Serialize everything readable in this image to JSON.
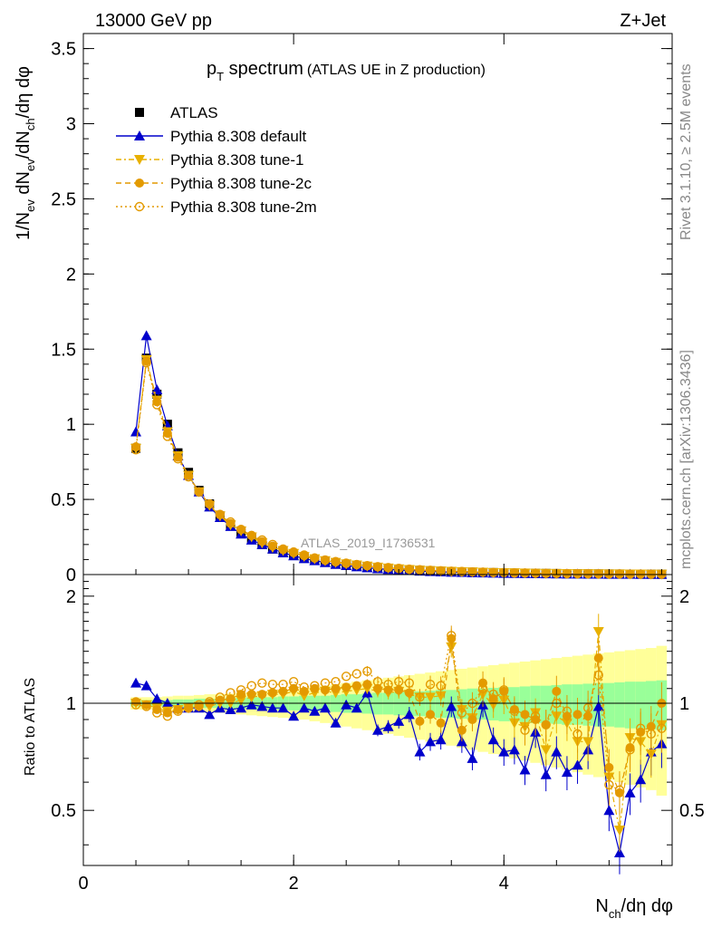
{
  "header": {
    "energy": "13000 GeV pp",
    "process": "Z+Jet"
  },
  "plot_title": {
    "main": "p",
    "sub": "T",
    "rest": " spectrum",
    "paren": "(ATLAS UE in Z production)"
  },
  "side_labels": {
    "rivet": "Rivet 3.1.10, ≥ 2.5M events",
    "mcplots": "mcplots.cern.ch [arXiv:1306.3436]"
  },
  "reference": "ATLAS_2019_I1736531",
  "ylabel_main": {
    "p1": "1/N",
    "s1": "ev",
    "p2": " dN",
    "s2": "ev",
    "p3": "/dN",
    "s3": "ch",
    "p4": "/dη dφ"
  },
  "ylabel_ratio": "Ratio to ATLAS",
  "xlabel": {
    "p1": "N",
    "s1": "ch",
    "p2": "/dη dφ"
  },
  "legend": [
    {
      "name": "ATLAS",
      "color": "#000000",
      "marker": "square",
      "line": "none"
    },
    {
      "name": "Pythia 8.308 default",
      "color": "#0000cc",
      "marker": "triangle-up",
      "line": "solid"
    },
    {
      "name": "Pythia 8.308 tune-1",
      "color": "#e8b000",
      "marker": "triangle-down",
      "line": "dashdot"
    },
    {
      "name": "Pythia 8.308 tune-2c",
      "color": "#e39a00",
      "marker": "circle",
      "line": "dashed"
    },
    {
      "name": "Pythia 8.308 tune-2m",
      "color": "#e39a00",
      "marker": "open-circle",
      "line": "dotted"
    }
  ],
  "chart_data": [
    {
      "type": "scatter",
      "panel": "main",
      "xlim": [
        0,
        5.6
      ],
      "ylim": [
        0,
        3.6
      ],
      "xticks": [
        0,
        2,
        4
      ],
      "yticks": [
        0,
        0.5,
        1,
        1.5,
        2,
        2.5,
        3,
        3.5
      ],
      "ytick_labels": [
        "0",
        "0.5",
        "1",
        "1.5",
        "2",
        "2.5",
        "3",
        "3.5"
      ],
      "x": [
        0.5,
        0.6,
        0.7,
        0.8,
        0.9,
        1.0,
        1.1,
        1.2,
        1.3,
        1.4,
        1.5,
        1.6,
        1.7,
        1.8,
        1.9,
        2.0,
        2.1,
        2.2,
        2.3,
        2.4,
        2.5,
        2.6,
        2.7,
        2.8,
        2.9,
        3.0,
        3.1,
        3.2,
        3.3,
        3.4,
        3.5,
        3.6,
        3.7,
        3.8,
        3.9,
        4.0,
        4.1,
        4.2,
        4.3,
        4.4,
        4.5,
        4.6,
        4.7,
        4.8,
        4.9,
        5.0,
        5.1,
        5.2,
        5.3,
        5.4,
        5.5
      ],
      "series": [
        {
          "name": "ATLAS",
          "values": [
            0.84,
            1.44,
            1.2,
            1.0,
            0.81,
            0.68,
            0.56,
            0.47,
            0.39,
            0.33,
            0.28,
            0.24,
            0.2,
            0.17,
            0.15,
            0.13,
            0.11,
            0.098,
            0.085,
            0.075,
            0.066,
            0.058,
            0.051,
            0.045,
            0.04,
            0.035,
            0.031,
            0.028,
            0.025,
            0.022,
            0.02,
            0.018,
            0.016,
            0.014,
            0.013,
            0.011,
            0.01,
            0.009,
            0.0082,
            0.0074,
            0.0066,
            0.0059,
            0.0053,
            0.0048,
            0.0043,
            0.0038,
            0.0034,
            0.0031,
            0.0028,
            0.0025,
            0.0022
          ]
        },
        {
          "name": "Pythia 8.308 default",
          "values": [
            0.95,
            1.59,
            1.23,
            0.99,
            0.79,
            0.66,
            0.55,
            0.45,
            0.38,
            0.32,
            0.27,
            0.23,
            0.2,
            0.17,
            0.145,
            0.125,
            0.106,
            0.093,
            0.08,
            0.068,
            0.06,
            0.052,
            0.045,
            0.039,
            0.034,
            0.03,
            0.027,
            0.023,
            0.02,
            0.018,
            0.016,
            0.014,
            0.012,
            0.011,
            0.01,
            0.0085,
            0.0075,
            0.0066,
            0.0058,
            0.0051,
            0.0045,
            0.004,
            0.0036,
            0.0032,
            0.0028,
            0.0024,
            0.0021,
            0.0019,
            0.0017,
            0.0015,
            0.0013
          ]
        },
        {
          "name": "Pythia 8.308 tune-1",
          "values": [
            0.84,
            1.43,
            1.16,
            0.95,
            0.79,
            0.66,
            0.55,
            0.46,
            0.39,
            0.33,
            0.29,
            0.25,
            0.21,
            0.18,
            0.16,
            0.14,
            0.12,
            0.105,
            0.092,
            0.081,
            0.071,
            0.063,
            0.056,
            0.049,
            0.043,
            0.038,
            0.033,
            0.029,
            0.026,
            0.023,
            0.021,
            0.019,
            0.017,
            0.015,
            0.013,
            0.012,
            0.011,
            0.0095,
            0.0085,
            0.0076,
            0.0068,
            0.0061,
            0.0055,
            0.0049,
            0.0044,
            0.0039,
            0.0035,
            0.0031,
            0.0028,
            0.0025,
            0.0022
          ]
        },
        {
          "name": "Pythia 8.308 tune-2c",
          "values": [
            0.85,
            1.42,
            1.15,
            0.94,
            0.78,
            0.66,
            0.55,
            0.47,
            0.4,
            0.34,
            0.3,
            0.26,
            0.22,
            0.19,
            0.165,
            0.145,
            0.125,
            0.11,
            0.095,
            0.084,
            0.074,
            0.066,
            0.058,
            0.051,
            0.045,
            0.04,
            0.035,
            0.031,
            0.027,
            0.024,
            0.022,
            0.02,
            0.018,
            0.016,
            0.014,
            0.012,
            0.011,
            0.01,
            0.009,
            0.008,
            0.0071,
            0.0064,
            0.0057,
            0.0051,
            0.0046,
            0.0041,
            0.0037,
            0.0033,
            0.0029,
            0.0026,
            0.0023
          ]
        },
        {
          "name": "Pythia 8.308 tune-2m",
          "values": [
            0.83,
            1.41,
            1.13,
            0.92,
            0.77,
            0.65,
            0.55,
            0.47,
            0.4,
            0.35,
            0.3,
            0.26,
            0.23,
            0.2,
            0.17,
            0.15,
            0.13,
            0.11,
            0.097,
            0.086,
            0.076,
            0.067,
            0.059,
            0.052,
            0.046,
            0.041,
            0.036,
            0.032,
            0.028,
            0.025,
            0.022,
            0.02,
            0.018,
            0.016,
            0.014,
            0.013,
            0.011,
            0.01,
            0.009,
            0.008,
            0.0072,
            0.0065,
            0.0058,
            0.0052,
            0.0047,
            0.0042,
            0.0038,
            0.0034,
            0.003,
            0.0027,
            0.0024
          ]
        }
      ]
    },
    {
      "type": "scatter",
      "panel": "ratio",
      "xlabel": "N_ch/dη dφ",
      "ylabel": "Ratio to ATLAS",
      "xlim": [
        0,
        5.6
      ],
      "ylim": [
        0.35,
        2.3
      ],
      "xticks": [
        0,
        2,
        4
      ],
      "xtick_labels": [
        "0",
        "2",
        "4"
      ],
      "yticks": [
        0.5,
        1,
        2
      ],
      "ytick_labels": [
        "0.5",
        "1",
        "2"
      ],
      "x": [
        0.5,
        0.6,
        0.7,
        0.8,
        0.9,
        1.0,
        1.1,
        1.2,
        1.3,
        1.4,
        1.5,
        1.6,
        1.7,
        1.8,
        1.9,
        2.0,
        2.1,
        2.2,
        2.3,
        2.4,
        2.5,
        2.6,
        2.7,
        2.8,
        2.9,
        3.0,
        3.1,
        3.2,
        3.3,
        3.4,
        3.5,
        3.6,
        3.7,
        3.8,
        3.9,
        4.0,
        4.1,
        4.2,
        4.3,
        4.4,
        4.5,
        4.6,
        4.7,
        4.8,
        4.9,
        5.0,
        5.1,
        5.2,
        5.3,
        5.4,
        5.5
      ],
      "band_inner": [
        0.02,
        0.02,
        0.02,
        0.02,
        0.025,
        0.025,
        0.03,
        0.03,
        0.03,
        0.035,
        0.035,
        0.04,
        0.04,
        0.04,
        0.045,
        0.045,
        0.05,
        0.05,
        0.05,
        0.055,
        0.06,
        0.06,
        0.065,
        0.07,
        0.07,
        0.075,
        0.08,
        0.08,
        0.085,
        0.09,
        0.09,
        0.095,
        0.1,
        0.1,
        0.105,
        0.11,
        0.11,
        0.115,
        0.12,
        0.12,
        0.125,
        0.13,
        0.13,
        0.135,
        0.14,
        0.14,
        0.145,
        0.15,
        0.15,
        0.155,
        0.16
      ],
      "band_outer": [
        0.04,
        0.04,
        0.04,
        0.045,
        0.05,
        0.05,
        0.055,
        0.06,
        0.06,
        0.065,
        0.07,
        0.075,
        0.08,
        0.085,
        0.09,
        0.095,
        0.1,
        0.11,
        0.12,
        0.13,
        0.14,
        0.15,
        0.16,
        0.17,
        0.18,
        0.19,
        0.2,
        0.21,
        0.22,
        0.23,
        0.24,
        0.25,
        0.26,
        0.27,
        0.28,
        0.29,
        0.3,
        0.31,
        0.32,
        0.33,
        0.34,
        0.35,
        0.36,
        0.37,
        0.38,
        0.39,
        0.4,
        0.41,
        0.42,
        0.43,
        0.45
      ],
      "series": [
        {
          "name": "Pythia 8.308 default",
          "values": [
            1.14,
            1.12,
            1.03,
            1.0,
            0.97,
            0.97,
            0.97,
            0.93,
            0.97,
            0.96,
            0.97,
            0.99,
            0.98,
            0.97,
            0.97,
            0.92,
            0.97,
            0.95,
            0.97,
            0.88,
            0.99,
            0.97,
            1.07,
            0.84,
            0.86,
            0.89,
            0.93,
            0.73,
            0.78,
            0.79,
            0.98,
            0.78,
            0.7,
            0.99,
            0.79,
            0.73,
            0.74,
            0.65,
            0.83,
            0.63,
            0.73,
            0.64,
            0.67,
            0.74,
            0.98,
            0.5,
            0.38,
            0.56,
            0.61,
            0.73,
            0.77
          ]
        },
        {
          "name": "Pythia 8.308 tune-1",
          "values": [
            1.0,
            0.99,
            0.97,
            0.95,
            0.96,
            0.97,
            0.98,
            0.98,
            1.0,
            1.0,
            1.02,
            1.04,
            1.05,
            1.06,
            1.06,
            1.08,
            1.05,
            1.07,
            1.08,
            1.07,
            1.08,
            1.09,
            1.1,
            1.08,
            1.07,
            1.08,
            1.06,
            1.04,
            1.04,
            1.05,
            1.44,
            0.96,
            0.91,
            1.06,
            0.99,
            1.02,
            0.88,
            0.86,
            0.94,
            0.74,
            0.92,
            0.88,
            0.78,
            0.78,
            1.59,
            0.62,
            0.44,
            0.8,
            0.78,
            0.72,
            0.87
          ]
        },
        {
          "name": "Pythia 8.308 tune-2c",
          "values": [
            1.01,
            0.99,
            0.96,
            0.94,
            0.96,
            0.97,
            0.98,
            1.0,
            1.02,
            1.03,
            1.06,
            1.06,
            1.06,
            1.07,
            1.08,
            1.1,
            1.08,
            1.1,
            1.09,
            1.1,
            1.11,
            1.12,
            1.13,
            1.1,
            1.09,
            1.09,
            1.07,
            0.89,
            0.93,
            0.88,
            1.52,
            0.84,
            0.9,
            1.14,
            1.03,
            1.08,
            0.96,
            0.93,
            0.9,
            0.87,
            1.08,
            0.92,
            0.93,
            0.92,
            1.34,
            0.66,
            0.56,
            0.75,
            0.83,
            0.86,
            1.0
          ]
        },
        {
          "name": "Pythia 8.308 tune-2m",
          "values": [
            0.99,
            0.98,
            0.94,
            0.92,
            0.95,
            0.97,
            0.99,
            1.01,
            1.04,
            1.07,
            1.09,
            1.12,
            1.14,
            1.13,
            1.13,
            1.15,
            1.11,
            1.12,
            1.14,
            1.15,
            1.19,
            1.21,
            1.23,
            1.15,
            1.13,
            1.15,
            1.14,
            1.04,
            1.13,
            1.12,
            1.55,
            0.94,
            1.0,
            1.1,
            1.06,
            1.09,
            0.95,
            0.84,
            0.92,
            0.87,
            1.0,
            0.95,
            0.82,
            0.97,
            1.2,
            0.59,
            0.57,
            0.74,
            0.85,
            0.82,
            0.85
          ]
        }
      ]
    }
  ]
}
